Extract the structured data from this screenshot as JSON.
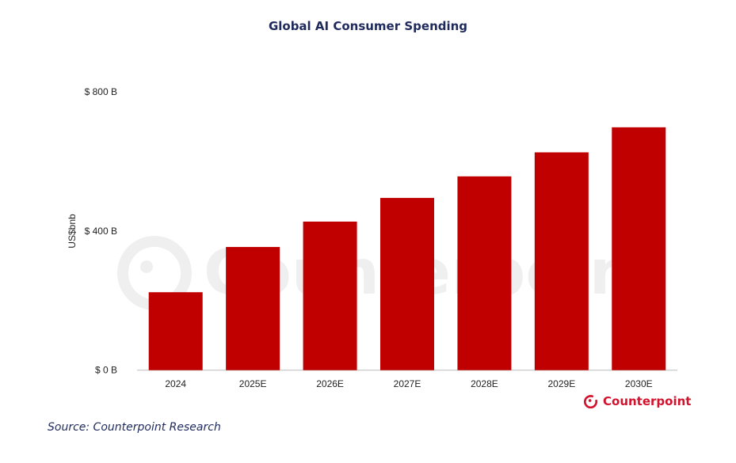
{
  "chart_data": {
    "type": "bar",
    "title": "Global AI Consumer Spending",
    "ylabel": "US$bnb",
    "xlabel": "",
    "categories": [
      "2024",
      "2025E",
      "2026E",
      "2027E",
      "2028E",
      "2029E",
      "2030E"
    ],
    "values": [
      224,
      354,
      427,
      495,
      557,
      626,
      698
    ],
    "ylim": [
      0,
      800
    ],
    "yticks": [
      0,
      400,
      800
    ],
    "ytick_labels": [
      "$ 0 B",
      "$ 400 B",
      "$ 800 B"
    ],
    "grid": false,
    "bar_color": "#c00000"
  },
  "source": "Source: Counterpoint Research",
  "logo": {
    "text": "Counterpoint",
    "color": "#d3132e"
  },
  "watermark": "Counterpoint"
}
